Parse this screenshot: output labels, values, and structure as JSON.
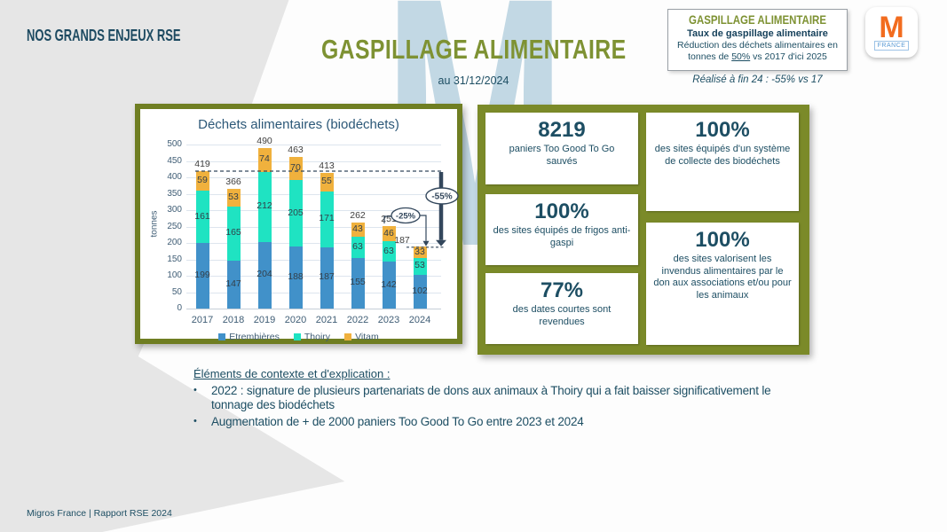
{
  "slide": {
    "eyebrow": "NOS GRANDS ENJEUX RSE",
    "title": "GASPILLAGE ALIMENTAIRE",
    "subtitle": "au 31/12/2024",
    "footer": "Migros France | Rapport RSE 2024",
    "watermark_letter": "M"
  },
  "target_box": {
    "title": "GASPILLAGE ALIMENTAIRE",
    "subtitle": "Taux de gaspillage alimentaire",
    "desc_before": "Réduction des déchets alimentaires en tonnes de ",
    "desc_underline": "50%",
    "desc_after": " vs 2017 d'ici 2025",
    "achieved": "Réalisé à fin 24 : -55% vs 17"
  },
  "logo": {
    "letter": "M",
    "country": "FRANCE"
  },
  "chart_data": {
    "type": "bar",
    "stacked": true,
    "title": "Déchets alimentaires (biodéchets)",
    "xlabel": "",
    "ylabel": "tonnes",
    "ylim": [
      0,
      500
    ],
    "ytick_step": 50,
    "grid": true,
    "legend_position": "bottom",
    "categories": [
      "2017",
      "2018",
      "2019",
      "2020",
      "2021",
      "2022",
      "2023",
      "2024"
    ],
    "series": [
      {
        "name": "Etrembières",
        "color": "#4191c9",
        "values": [
          199,
          147,
          204,
          188,
          187,
          155,
          142,
          102
        ]
      },
      {
        "name": "Thoiry",
        "color": "#1fe3c2",
        "values": [
          161,
          165,
          212,
          205,
          171,
          63,
          63,
          53
        ]
      },
      {
        "name": "Vitam",
        "color": "#f0b13d",
        "values": [
          59,
          53,
          74,
          70,
          55,
          43,
          46,
          33
        ]
      }
    ],
    "totals": [
      419,
      366,
      490,
      463,
      413,
      262,
      251,
      187
    ],
    "annotations": {
      "reference_value": 419,
      "final_value": 187,
      "big_arrow_label": "-55%",
      "small_arrow_label": "-25%",
      "small_arrow_from_value": 251
    }
  },
  "kpis": {
    "left": [
      {
        "value": "8219",
        "label": "paniers Too Good To Go sauvés"
      },
      {
        "value": "100%",
        "label": "des sites équipés de frigos anti-gaspi"
      },
      {
        "value": "77%",
        "label": "des dates courtes sont revendues"
      }
    ],
    "right": [
      {
        "value": "100%",
        "label": "des sites équipés d'un système de collecte des biodéchets"
      },
      {
        "value": "100%",
        "label": "des sites valorisent les invendus alimentaires par le don aux associations et/ou pour les animaux"
      }
    ]
  },
  "context": {
    "heading": "Éléments de contexte et d'explication :",
    "bullets": [
      "2022 : signature de plusieurs partenariats de dons aux animaux à Thoiry qui a fait baisser significativement le tonnage des biodéchets",
      "Augmentation de + de 2000 paniers Too Good To Go entre 2023 et 2024"
    ]
  },
  "colors": {
    "olive_accent": "#7e9233",
    "olive_panel": "#7b8a29",
    "olive_border": "#6f7e22",
    "dark_blue": "#1d4e63",
    "logo_orange": "#f26c1f",
    "watermark_blue": "#c2d8e4",
    "gray_band": "#e6e6e6",
    "annotation_navy": "#33475c"
  }
}
